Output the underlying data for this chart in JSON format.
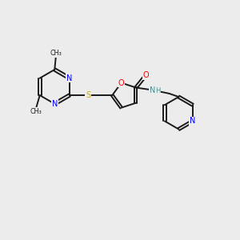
{
  "background_color": "#ececec",
  "bond_color": "#1a1a1a",
  "atom_colors": {
    "N": "#0000ff",
    "O": "#ff0000",
    "S": "#ccaa00",
    "C": "#1a1a1a",
    "H": "#4a9090"
  },
  "lw": 1.4,
  "fs": 7.0
}
